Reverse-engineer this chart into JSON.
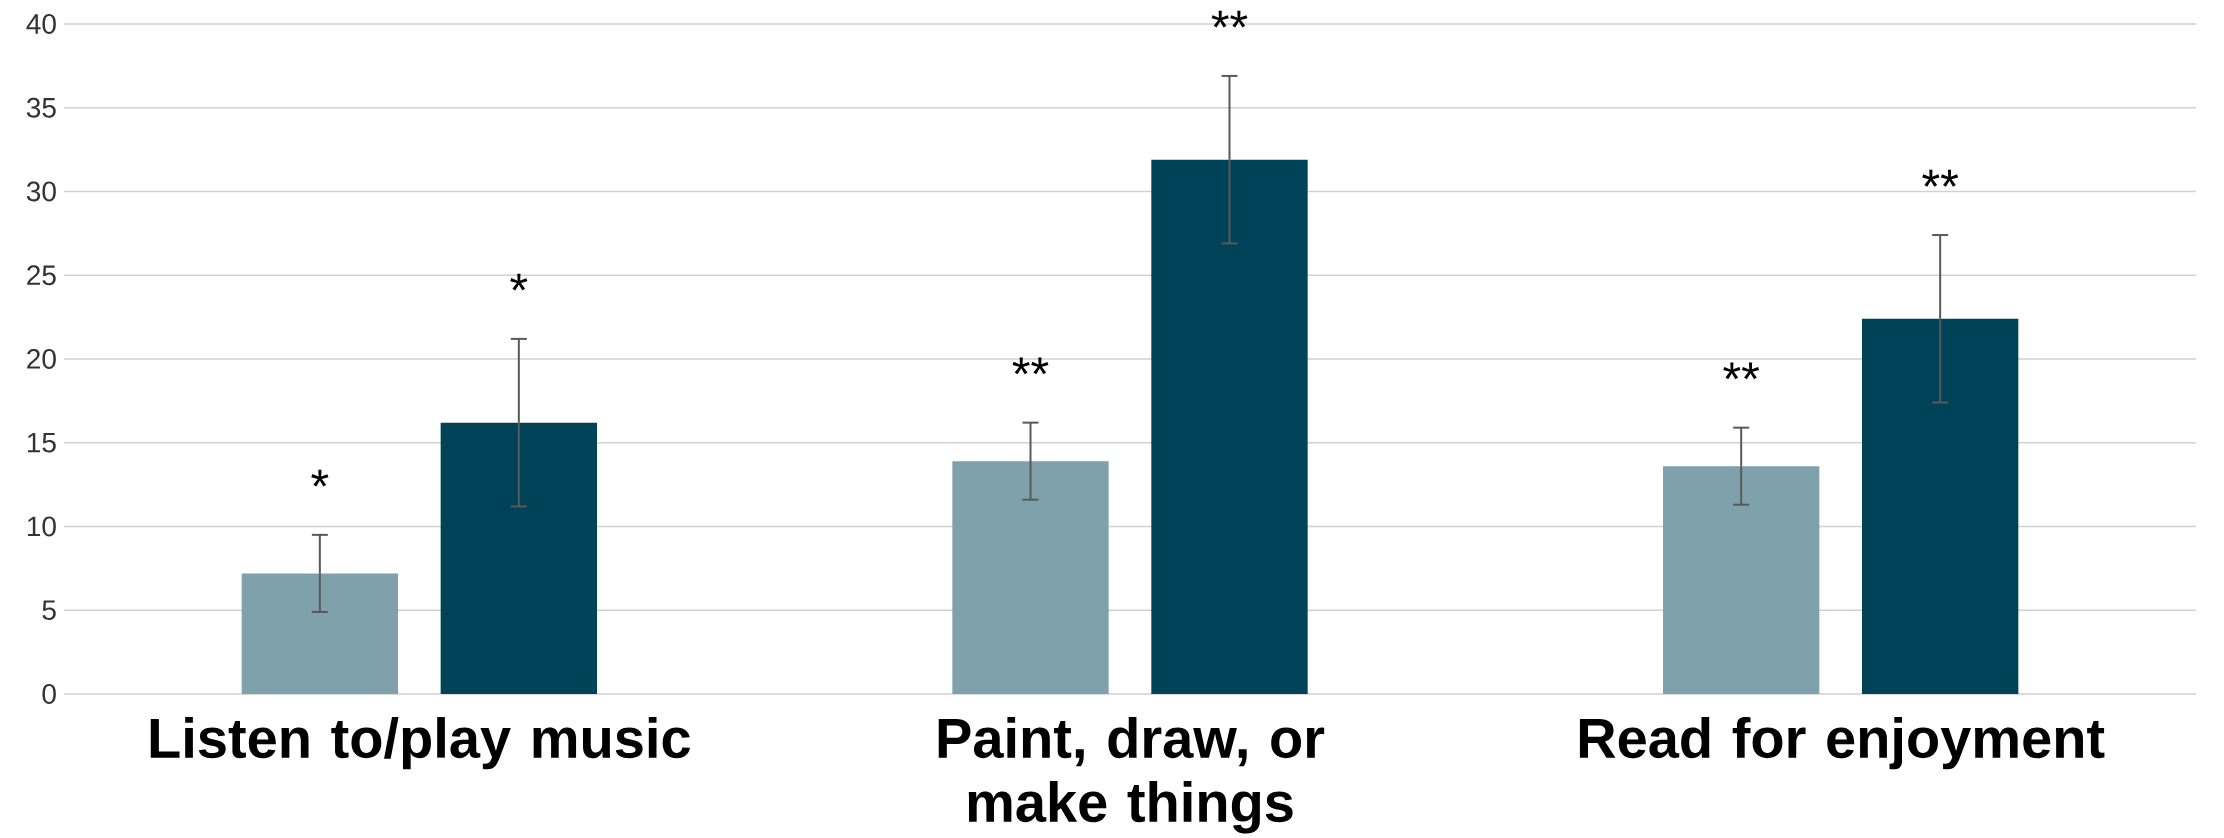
{
  "chart_data": {
    "type": "bar",
    "categories": [
      "Listen to/play music",
      "Paint, draw, or make things",
      "Read for enjoyment"
    ],
    "series": [
      {
        "color": "#7fa1ab",
        "values": [
          7.2,
          13.9,
          13.6
        ],
        "errors": [
          2.3,
          2.3,
          2.3
        ]
      },
      {
        "color": "#004257",
        "values": [
          16.2,
          31.9,
          22.4
        ],
        "errors": [
          5,
          5,
          5
        ]
      }
    ],
    "ylim": [
      0,
      40
    ],
    "yticks": [
      0,
      5,
      10,
      15,
      20,
      25,
      30,
      35,
      40
    ],
    "grid": "y",
    "annotations": [
      "*",
      "*",
      "**",
      "**",
      "**",
      "**"
    ]
  }
}
